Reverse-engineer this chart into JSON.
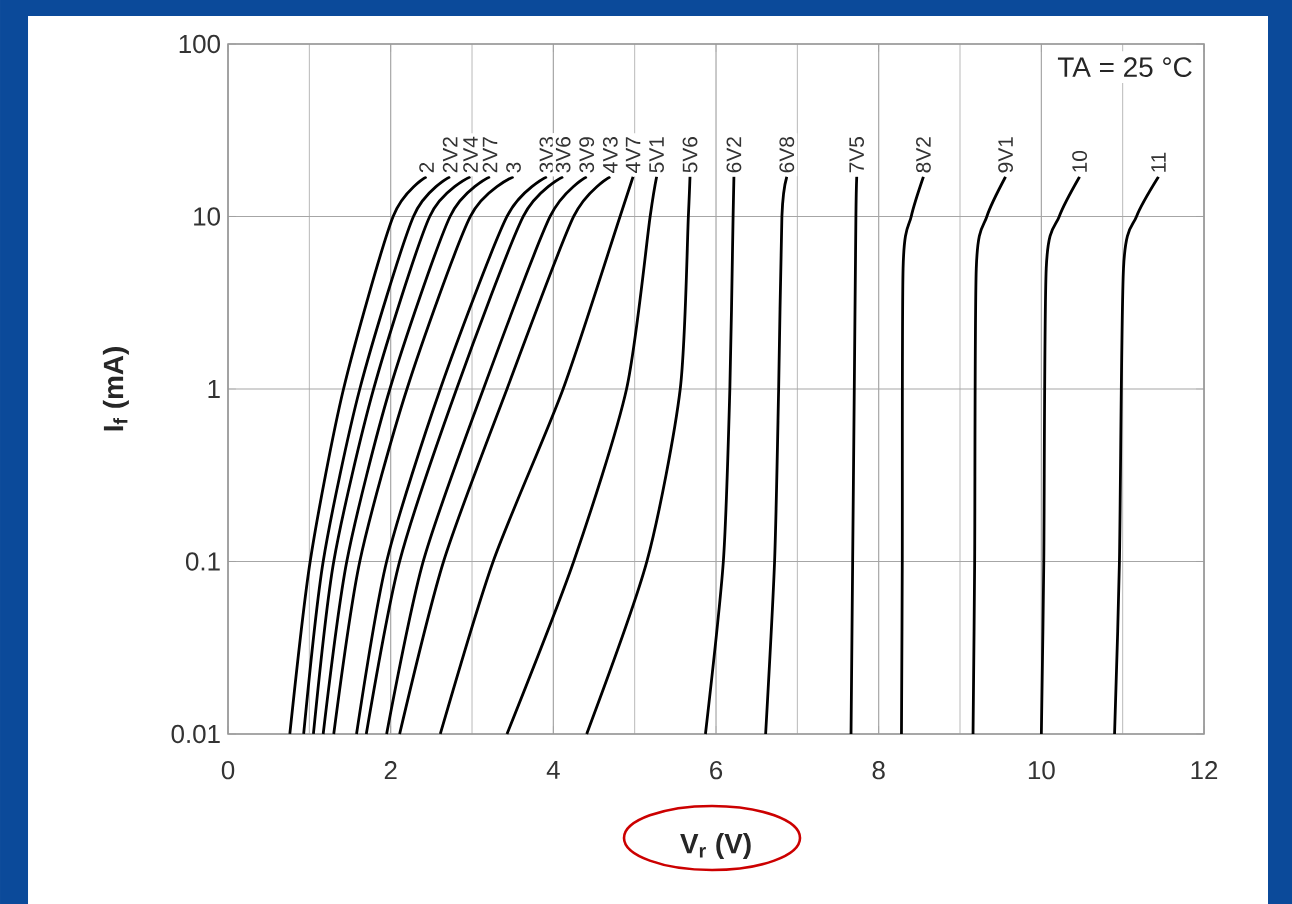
{
  "chart_data": {
    "type": "line",
    "xlabel": "V$_{r}$ (V)",
    "ylabel": "I$_{f}$ (mA)",
    "log": "y",
    "grid": true,
    "xlim": [
      0,
      12
    ],
    "xticks": [
      0,
      2,
      4,
      6,
      8,
      10,
      12
    ],
    "ylim": [
      0.01,
      100
    ],
    "yticks": [
      0.01,
      0.1,
      1,
      10,
      100
    ],
    "annotations": [
      "TA = 25 °C"
    ],
    "series": [
      {
        "name": "2",
        "color": "#000000",
        "x": [
          0.76,
          1.01,
          1.42,
          2.03,
          2.44
        ],
        "values": [
          0.01,
          0.1,
          1,
          10,
          17
        ]
      },
      {
        "name": "2V2",
        "color": "#000000",
        "x": [
          0.93,
          1.17,
          1.62,
          2.28,
          2.73
        ],
        "values": [
          0.01,
          0.1,
          1,
          10,
          17
        ]
      },
      {
        "name": "2V4",
        "color": "#000000",
        "x": [
          1.05,
          1.3,
          1.79,
          2.48,
          2.98
        ],
        "values": [
          0.01,
          0.1,
          1,
          10,
          17
        ]
      },
      {
        "name": "2V7",
        "color": "#000000",
        "x": [
          1.17,
          1.46,
          1.99,
          2.73,
          3.22
        ],
        "values": [
          0.01,
          0.1,
          1,
          10,
          17
        ]
      },
      {
        "name": "3",
        "color": "#000000",
        "x": [
          1.3,
          1.62,
          2.2,
          2.98,
          3.51
        ],
        "values": [
          0.01,
          0.1,
          1,
          10,
          17
        ]
      },
      {
        "name": "3V3",
        "color": "#000000",
        "x": [
          1.58,
          1.95,
          2.61,
          3.43,
          3.92
        ],
        "values": [
          0.01,
          0.1,
          1,
          10,
          17
        ]
      },
      {
        "name": "3V6",
        "color": "#000000",
        "x": [
          1.7,
          2.11,
          2.81,
          3.63,
          4.12
        ],
        "values": [
          0.01,
          0.1,
          1,
          10,
          17
        ]
      },
      {
        "name": "3V9",
        "color": "#000000",
        "x": [
          1.95,
          2.4,
          3.14,
          3.96,
          4.41
        ],
        "values": [
          0.01,
          0.1,
          1,
          10,
          17
        ]
      },
      {
        "name": "4V3",
        "color": "#000000",
        "x": [
          2.11,
          2.65,
          3.43,
          4.25,
          4.7
        ],
        "values": [
          0.01,
          0.1,
          1,
          10,
          17
        ]
      },
      {
        "name": "4V7",
        "color": "#000000",
        "x": [
          2.61,
          3.26,
          4.12,
          4.82,
          4.98
        ],
        "values": [
          0.01,
          0.1,
          1,
          10,
          17
        ]
      },
      {
        "name": "5V1",
        "color": "#000000",
        "x": [
          3.43,
          4.25,
          4.9,
          5.19,
          5.27
        ],
        "values": [
          0.01,
          0.1,
          1,
          10,
          17
        ]
      },
      {
        "name": "5V6",
        "color": "#000000",
        "x": [
          4.41,
          5.15,
          5.56,
          5.66,
          5.68
        ],
        "values": [
          0.01,
          0.1,
          1,
          10,
          17
        ]
      },
      {
        "name": "6V2",
        "color": "#000000",
        "x": [
          5.87,
          6.09,
          6.17,
          6.21,
          6.22
        ],
        "values": [
          0.01,
          0.1,
          1,
          10,
          17
        ]
      },
      {
        "name": "6V8",
        "color": "#000000",
        "x": [
          6.61,
          6.72,
          6.77,
          6.81,
          6.87
        ],
        "values": [
          0.01,
          0.1,
          1,
          10,
          17
        ]
      },
      {
        "name": "7V5",
        "color": "#000000",
        "x": [
          7.66,
          7.68,
          7.7,
          7.72,
          7.73
        ],
        "values": [
          0.01,
          0.1,
          1,
          10,
          17
        ]
      },
      {
        "name": "8V2",
        "color": "#000000",
        "x": [
          8.28,
          8.29,
          8.3,
          8.4,
          8.55
        ],
        "values": [
          0.01,
          0.1,
          5,
          10,
          17
        ]
      },
      {
        "name": "9V1",
        "color": "#000000",
        "x": [
          9.16,
          9.18,
          9.2,
          9.33,
          9.56
        ],
        "values": [
          0.01,
          0.1,
          5,
          10,
          17
        ]
      },
      {
        "name": "10",
        "color": "#000000",
        "x": [
          10.0,
          10.03,
          10.06,
          10.22,
          10.47
        ],
        "values": [
          0.01,
          0.1,
          5,
          10,
          17
        ]
      },
      {
        "name": "11",
        "color": "#000000",
        "x": [
          10.9,
          10.96,
          11.01,
          11.17,
          11.44
        ],
        "values": [
          0.01,
          0.1,
          5,
          10,
          17
        ]
      }
    ]
  }
}
